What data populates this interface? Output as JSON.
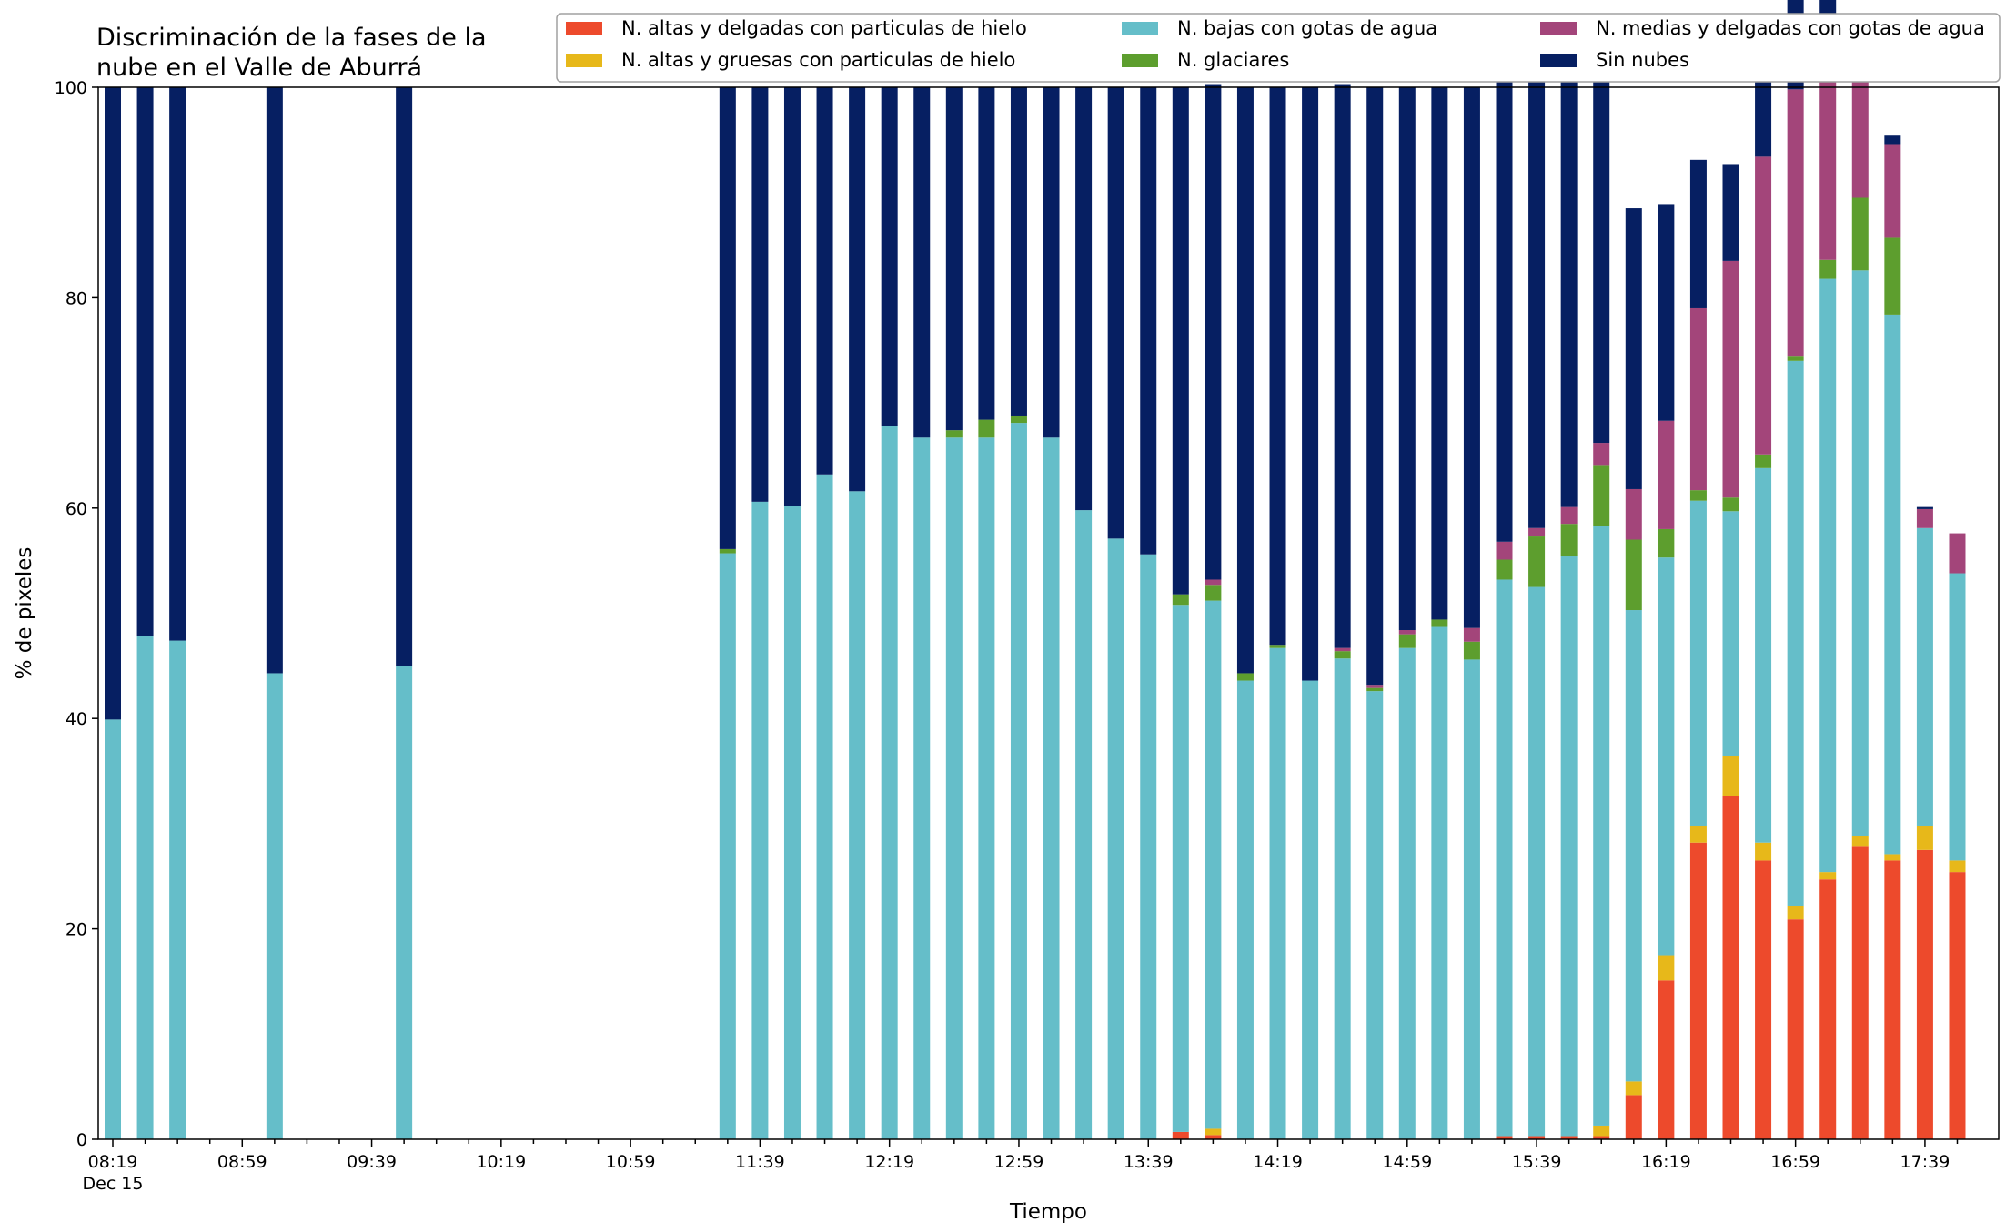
{
  "chart_data": {
    "type": "bar",
    "stacked": true,
    "title_lines": [
      "Discriminación de la fases de la",
      "nube en el Valle de Aburrá"
    ],
    "xlabel": "Tiempo",
    "ylabel": "% de pixeles",
    "ylim": [
      0,
      100
    ],
    "yticks": [
      0,
      20,
      40,
      60,
      80,
      100
    ],
    "grid": false,
    "legend_position": "top-right",
    "x_date_label": "Dec 15",
    "x_major_ticks": [
      "08:19",
      "08:59",
      "09:39",
      "10:19",
      "10:59",
      "11:39",
      "12:19",
      "12:59",
      "13:39",
      "14:19",
      "14:59",
      "15:39",
      "16:19",
      "16:59",
      "17:39"
    ],
    "categories": [
      "08:19",
      "08:29",
      "08:39",
      "08:49",
      "08:59",
      "09:09",
      "09:19",
      "09:29",
      "09:39",
      "09:49",
      "09:59",
      "10:09",
      "10:19",
      "10:29",
      "10:39",
      "10:49",
      "10:59",
      "11:09",
      "11:19",
      "11:29",
      "11:39",
      "11:49",
      "11:59",
      "12:09",
      "12:19",
      "12:29",
      "12:39",
      "12:49",
      "12:59",
      "13:09",
      "13:19",
      "13:29",
      "13:39",
      "13:49",
      "13:59",
      "14:09",
      "14:19",
      "14:29",
      "14:39",
      "14:49",
      "14:59",
      "15:09",
      "15:19",
      "15:29",
      "15:39",
      "15:49",
      "15:59",
      "16:09",
      "16:19",
      "16:29",
      "16:39",
      "16:49",
      "16:59",
      "17:09",
      "17:19",
      "17:29",
      "17:39",
      "17:49"
    ],
    "series": [
      {
        "name": "N. altas y delgadas con particulas de hielo",
        "color": "#ed4a2c",
        "values": [
          0,
          0,
          0,
          0,
          0,
          0,
          0,
          0,
          0,
          0,
          0,
          0,
          0,
          0,
          0,
          0,
          0,
          0,
          0,
          0,
          0,
          0,
          0,
          0,
          0,
          0,
          0,
          0,
          0,
          0,
          0,
          0,
          0,
          0.7,
          0.4,
          0,
          0,
          0,
          0,
          0,
          0,
          0,
          0,
          0.3,
          0.3,
          0.3,
          0.3,
          4.2,
          15.1,
          28.2,
          32.6,
          26.5,
          20.9,
          24.7,
          27.8,
          26.5,
          27.5,
          25.4
        ]
      },
      {
        "name": "N. altas y gruesas con particulas de hielo",
        "color": "#e7b81a",
        "values": [
          0,
          0,
          0,
          0,
          0,
          0,
          0,
          0,
          0,
          0,
          0,
          0,
          0,
          0,
          0,
          0,
          0,
          0,
          0,
          0,
          0,
          0,
          0,
          0,
          0,
          0,
          0,
          0,
          0,
          0,
          0,
          0,
          0,
          0,
          0.6,
          0,
          0,
          0,
          0,
          0,
          0,
          0,
          0,
          0,
          0,
          0,
          1.0,
          1.3,
          2.4,
          1.6,
          3.8,
          1.7,
          1.3,
          0.7,
          1.0,
          0.6,
          2.3,
          1.1
        ]
      },
      {
        "name": "N. bajas con gotas de agua",
        "color": "#65bec9",
        "values": [
          39.9,
          47.8,
          47.4,
          0,
          0,
          44.3,
          0,
          0,
          0,
          45.0,
          0,
          0,
          0,
          0,
          0,
          0,
          0,
          0,
          0,
          55.7,
          60.6,
          60.2,
          63.2,
          61.6,
          67.8,
          66.7,
          66.7,
          66.7,
          68.1,
          66.7,
          59.8,
          57.1,
          55.6,
          50.1,
          50.2,
          43.6,
          46.7,
          43.6,
          45.7,
          42.6,
          46.7,
          48.7,
          45.6,
          52.9,
          52.2,
          55.1,
          57.0,
          44.8,
          37.8,
          30.9,
          23.3,
          35.6,
          51.8,
          56.4,
          53.8,
          51.3,
          28.3,
          27.3
        ]
      },
      {
        "name": "N. glaciares",
        "color": "#5d9e2e",
        "values": [
          0,
          0,
          0,
          0,
          0,
          0,
          0,
          0,
          0,
          0,
          0,
          0,
          0,
          0,
          0,
          0,
          0,
          0,
          0,
          0.4,
          0,
          0,
          0,
          0,
          0,
          0,
          0.7,
          1.7,
          0.7,
          0,
          0,
          0,
          0,
          1.0,
          1.5,
          0.7,
          0.3,
          0,
          0.7,
          0.3,
          1.3,
          0.7,
          1.7,
          1.9,
          4.8,
          3.1,
          5.8,
          6.7,
          2.7,
          1.0,
          1.3,
          1.3,
          0.4,
          1.8,
          6.9,
          7.3,
          0,
          0
        ]
      },
      {
        "name": "N. medias y delgadas con gotas de agua",
        "color": "#a3457a",
        "values": [
          0,
          0,
          0,
          0,
          0,
          0,
          0,
          0,
          0,
          0,
          0,
          0,
          0,
          0,
          0,
          0,
          0,
          0,
          0,
          0,
          0,
          0,
          0,
          0,
          0,
          0,
          0,
          0,
          0,
          0,
          0,
          0,
          0,
          0,
          0.5,
          0,
          0,
          0,
          0.3,
          0.3,
          0.4,
          0,
          1.3,
          1.7,
          0.8,
          1.6,
          2.1,
          4.8,
          10.3,
          17.3,
          22.5,
          28.3,
          25.4,
          20.7,
          14.1,
          8.9,
          1.8,
          3.8
        ]
      },
      {
        "name": "Sin nubes",
        "color": "#061f62",
        "values": [
          60.1,
          52.2,
          52.6,
          0,
          0,
          55.7,
          0,
          0,
          0,
          55.0,
          0,
          0,
          0,
          0,
          0,
          0,
          0,
          0,
          0,
          43.9,
          39.4,
          39.8,
          36.8,
          38.4,
          32.2,
          33.3,
          32.6,
          31.6,
          31.2,
          33.3,
          40.2,
          42.9,
          44.4,
          48.2,
          47.1,
          55.7,
          53.0,
          56.4,
          53.6,
          56.8,
          51.6,
          50.6,
          51.4,
          45.2,
          42.9,
          41.9,
          38.0,
          26.7,
          20.6,
          14.1,
          9.2,
          8.6,
          9.2,
          4.1,
          1.6,
          0.8,
          0.2,
          0
        ]
      }
    ]
  }
}
